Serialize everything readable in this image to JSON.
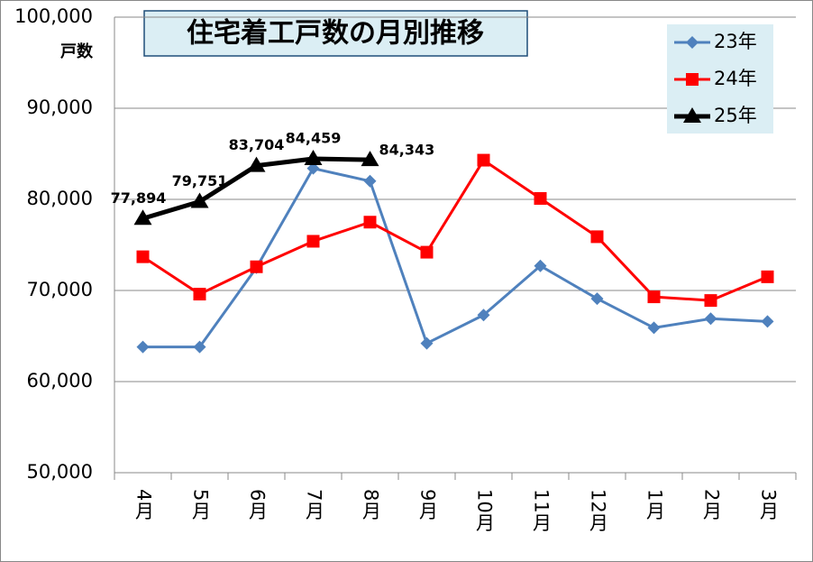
{
  "chart_data": {
    "type": "line",
    "title": "住宅着工戸数の月別推移",
    "y_label": "戸数",
    "categories": [
      "4月",
      "5月",
      "6月",
      "7月",
      "8月",
      "9月",
      "10月",
      "11月",
      "12月",
      "1月",
      "2月",
      "3月"
    ],
    "series": [
      {
        "name": "23年",
        "color": "#4f81bd",
        "marker": "diamond",
        "values": [
          63800,
          63800,
          72500,
          83400,
          82000,
          64200,
          67300,
          72700,
          69100,
          65900,
          66900,
          66600
        ]
      },
      {
        "name": "24年",
        "color": "#ff0000",
        "marker": "square",
        "values": [
          73700,
          69600,
          72600,
          75400,
          77500,
          74200,
          84300,
          80100,
          75900,
          69300,
          68900,
          71500
        ]
      },
      {
        "name": "25年",
        "color": "#000000",
        "marker": "triangle",
        "values": [
          77894,
          79751,
          83704,
          84459,
          84343,
          null,
          null,
          null,
          null,
          null,
          null,
          null
        ],
        "value_labels": [
          "77,894",
          "79,751",
          "83,704",
          "84,459",
          "84,343",
          null,
          null,
          null,
          null,
          null,
          null,
          null
        ]
      }
    ],
    "ylim": [
      50000,
      100000
    ],
    "yticks": [
      {
        "value": 50000,
        "label": "50,000"
      },
      {
        "value": 60000,
        "label": "60,000"
      },
      {
        "value": 70000,
        "label": "70,000"
      },
      {
        "value": 80000,
        "label": "80,000"
      },
      {
        "value": 90000,
        "label": "90,000"
      },
      {
        "value": 100000,
        "label": "100,000"
      }
    ],
    "grid": true,
    "legend": "top-right"
  }
}
